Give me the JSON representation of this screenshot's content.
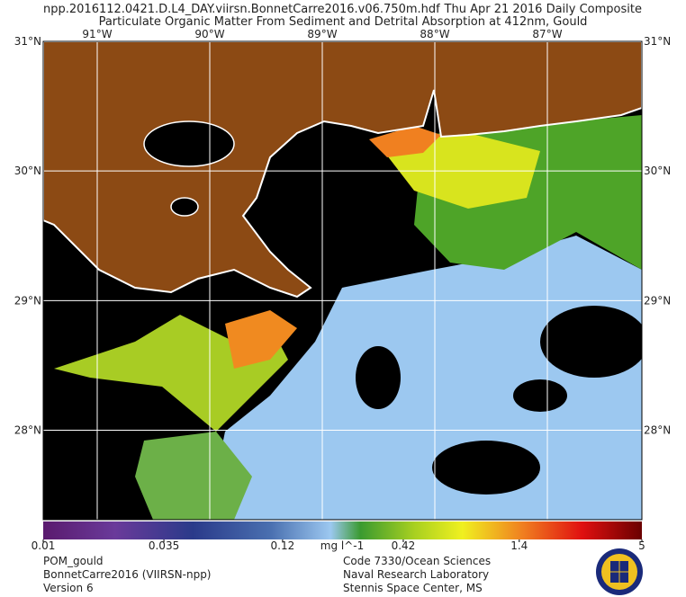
{
  "header": {
    "filename": "npp.2016112.0421.D.L4_DAY.viirsn.BonnetCarre2016.v06.750m.hdf",
    "date": "Thu Apr 21 2016 Daily Composite",
    "title": "Particulate Organic Matter From Sediment and Detrital Absorption at 412nm, Gould"
  },
  "map": {
    "lonlim": [
      -91.48,
      -86.16
    ],
    "latlim": [
      27.31,
      31.0
    ],
    "lon_ticks": [
      {
        "value": -91,
        "label": "91°W"
      },
      {
        "value": -90,
        "label": "90°W"
      },
      {
        "value": -89,
        "label": "89°W"
      },
      {
        "value": -88,
        "label": "88°W"
      },
      {
        "value": -87,
        "label": "87°W"
      }
    ],
    "lat_ticks": [
      {
        "value": 31,
        "label": "31°N"
      },
      {
        "value": 30,
        "label": "30°N"
      },
      {
        "value": 29,
        "label": "29°N"
      },
      {
        "value": 28,
        "label": "28°N"
      }
    ]
  },
  "colorbar": {
    "scale": "log",
    "lim": [
      0.01,
      5
    ],
    "ticks": [
      0.01,
      0.035,
      0.12,
      0.42,
      1.4,
      5
    ],
    "unit": "mg l^-1"
  },
  "footer": {
    "left": [
      "POM_gould",
      "BonnetCarre2016 (VIIRSN-npp)",
      "Version 6"
    ],
    "right": [
      "Code 7330/Ocean Sciences",
      "Naval Research Laboratory",
      "Stennis Space Center, MS"
    ]
  }
}
